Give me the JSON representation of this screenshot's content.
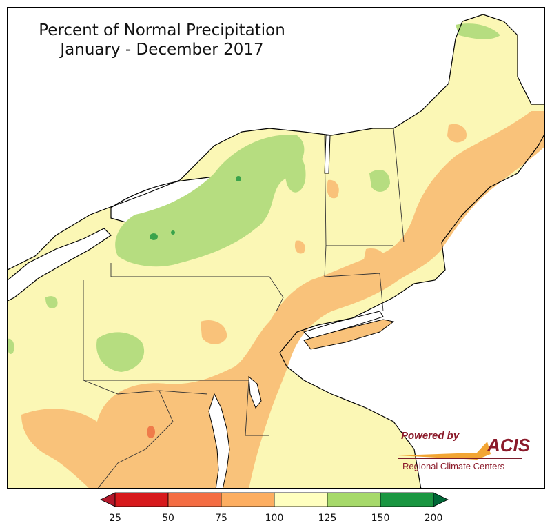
{
  "title": {
    "line1": "Percent of Normal Precipitation",
    "line2": "January - December 2017"
  },
  "logo": {
    "powered_by": "Powered by",
    "name": "ACIS",
    "subtitle": "Regional Climate Centers"
  },
  "legend": {
    "ticks": [
      "25",
      "50",
      "75",
      "100",
      "125",
      "150",
      "200"
    ],
    "colors": [
      "#d7191c",
      "#f46d43",
      "#fdae61",
      "#ffffbf",
      "#a6d96a",
      "#1a9641"
    ],
    "under_color": "#b2182b",
    "over_color": "#006837"
  },
  "map_colors": {
    "land_base": "#fbf7b5",
    "dry": "#f9c27a",
    "very_dry": "#ef7b4a",
    "wet": "#b6dd80",
    "very_wet": "#3aa34b",
    "water": "#ffffff"
  }
}
